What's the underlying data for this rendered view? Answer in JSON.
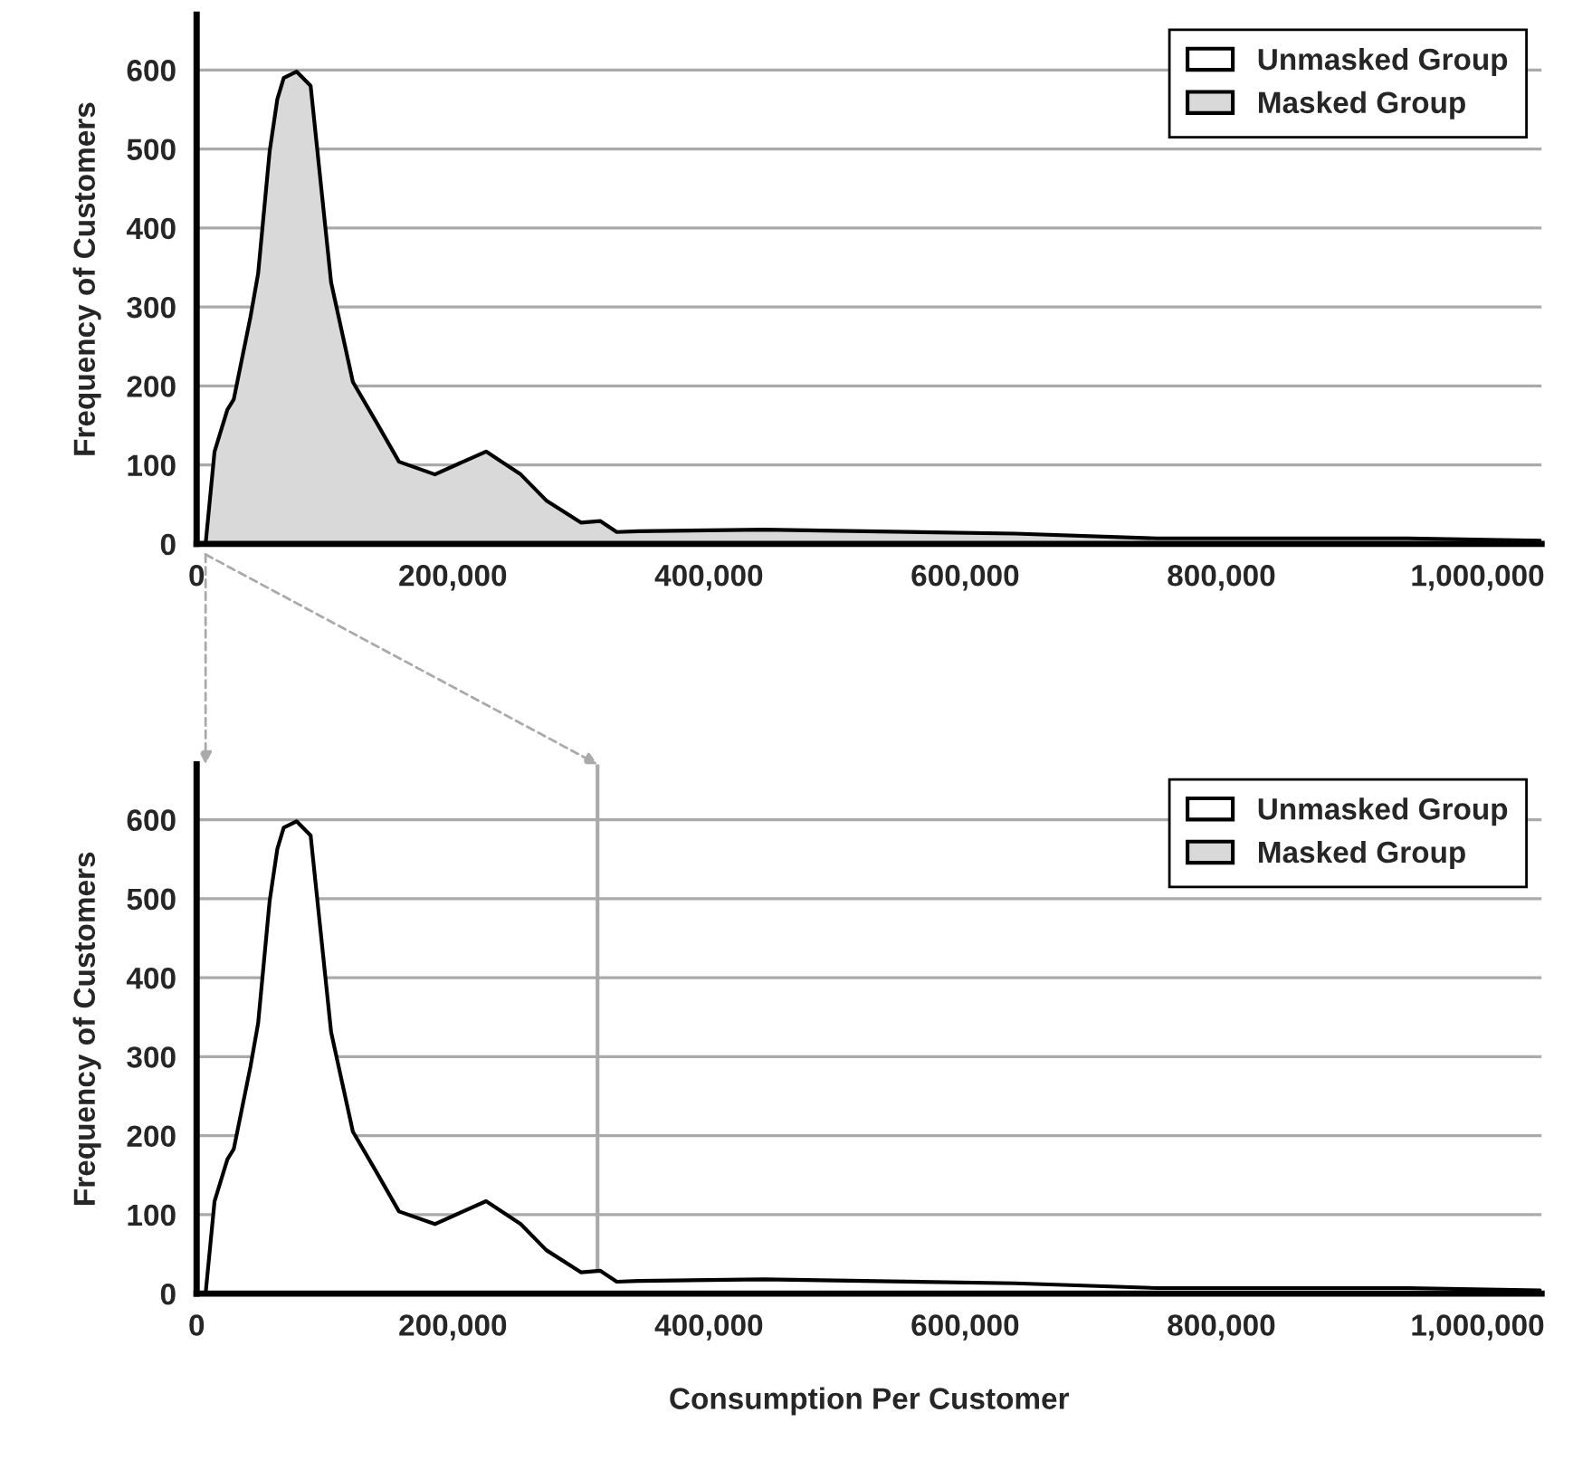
{
  "chart_data": [
    {
      "type": "area",
      "ylabel": "Frequency of Customers",
      "x": [
        7000,
        14000,
        24000,
        29000,
        42000,
        48000,
        57000,
        63000,
        68000,
        78000,
        89000,
        105000,
        122000,
        140000,
        158000,
        186000,
        226000,
        253000,
        273000,
        300000,
        315000,
        328000,
        345000,
        443000,
        639000,
        750000,
        946000,
        1049000
      ],
      "series": [
        {
          "name": "Unmasked Group",
          "color": "#ffffff",
          "values": [
            null,
            null,
            null,
            null,
            null,
            null,
            null,
            null,
            null,
            null,
            null,
            null,
            null,
            null,
            null,
            null,
            null,
            null,
            null,
            null,
            null,
            null,
            null,
            null,
            null,
            null,
            null,
            null
          ]
        },
        {
          "name": "Masked Group",
          "color": "#d9d9d9",
          "values": [
            0,
            117,
            170,
            183,
            287,
            342,
            497,
            563,
            590,
            598,
            580,
            331,
            205,
            155,
            104,
            88,
            117,
            88,
            55,
            27,
            29,
            15,
            16,
            18,
            13,
            7,
            7,
            4
          ]
        }
      ],
      "xlim": [
        0,
        1050000
      ],
      "xticks": [
        0,
        {
          "value": 200000,
          "label": "200,000"
        },
        {
          "value": 400000,
          "label": "400,000"
        },
        {
          "value": 600000,
          "label": "600,000"
        },
        {
          "value": 800000,
          "label": "800,000"
        },
        {
          "value": 1000000,
          "label": "1,000,000"
        }
      ],
      "ylim": [
        0,
        670
      ],
      "yticks": [
        0,
        100,
        200,
        300,
        400,
        500,
        600
      ],
      "grid": "y",
      "legend": "top right"
    },
    {
      "type": "area",
      "ylabel": "Frequency of Customers",
      "xlabel": "Consumption Per Customer",
      "x": [
        7000,
        14000,
        24000,
        29000,
        42000,
        48000,
        57000,
        63000,
        68000,
        78000,
        89000,
        105000,
        122000,
        140000,
        158000,
        186000,
        226000,
        253000,
        273000,
        300000,
        315000,
        328000,
        345000,
        443000,
        639000,
        750000,
        946000,
        1049000
      ],
      "series": [
        {
          "name": "Unmasked Group",
          "color": "#ffffff",
          "values": [
            0,
            117,
            170,
            183,
            287,
            342,
            497,
            563,
            590,
            598,
            580,
            331,
            205,
            155,
            104,
            88,
            117,
            88,
            55,
            27,
            29,
            15,
            16,
            18,
            13,
            7,
            7,
            4
          ]
        },
        {
          "name": "Masked Group",
          "color": "#d9d9d9",
          "values": [
            null,
            null,
            null,
            null,
            null,
            null,
            null,
            null,
            null,
            null,
            null,
            null,
            null,
            null,
            null,
            null,
            null,
            null,
            null,
            null,
            null,
            null,
            null,
            null,
            null,
            null,
            null,
            null
          ]
        }
      ],
      "xlim": [
        0,
        1050000
      ],
      "xticks": [
        0,
        {
          "value": 200000,
          "label": "200,000"
        },
        {
          "value": 400000,
          "label": "400,000"
        },
        {
          "value": 600000,
          "label": "600,000"
        },
        {
          "value": 800000,
          "label": "800,000"
        },
        {
          "value": 1000000,
          "label": "1,000,000"
        }
      ],
      "ylim": [
        0,
        670
      ],
      "yticks": [
        0,
        100,
        200,
        300,
        400,
        500,
        600
      ],
      "grid": "y",
      "legend": "top right",
      "ref_lines": [
        {
          "axis": "x",
          "value": 313000,
          "color": "#aaaaaa"
        }
      ]
    }
  ]
}
